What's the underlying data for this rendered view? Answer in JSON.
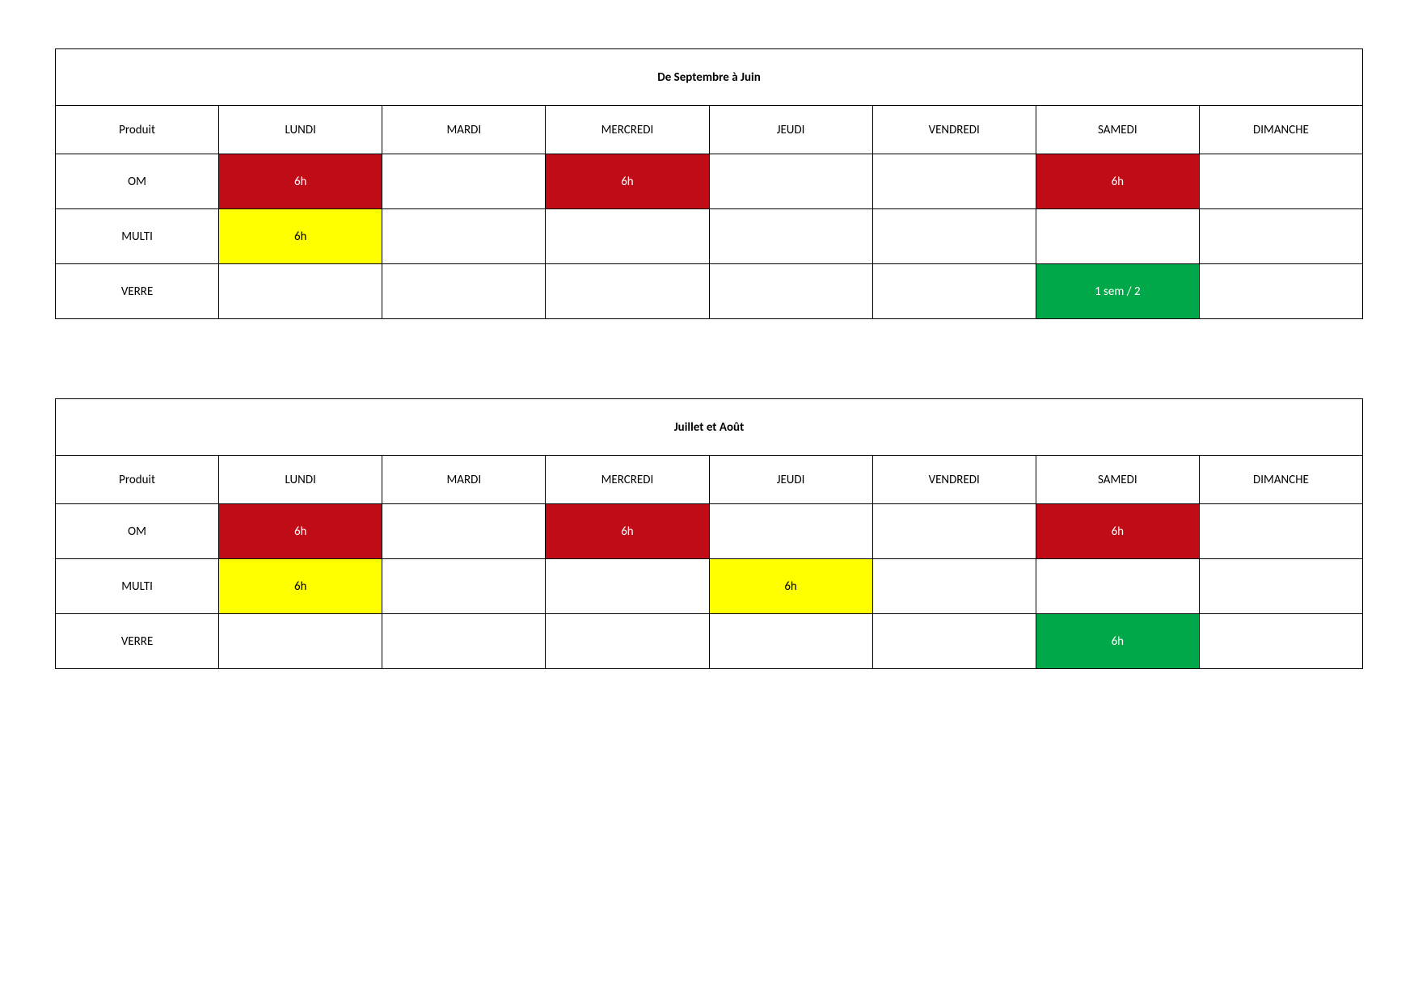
{
  "colors": {
    "red": "#c00c17",
    "yellow": "#ffff00",
    "green": "#00a84a",
    "white_text": "#ffffff",
    "black_text": "#000000"
  },
  "columns": [
    "Produit",
    "LUNDI",
    "MARDI",
    "MERCREDI",
    "JEUDI",
    "VENDREDI",
    "SAMEDI",
    "DIMANCHE"
  ],
  "tables": [
    {
      "title": "De Septembre à Juin",
      "rows": [
        {
          "label": "OM",
          "cells": [
            {
              "text": "6h",
              "bg": "red",
              "fg": "white_text"
            },
            {
              "text": "",
              "bg": "",
              "fg": ""
            },
            {
              "text": "6h",
              "bg": "red",
              "fg": "white_text"
            },
            {
              "text": "",
              "bg": "",
              "fg": ""
            },
            {
              "text": "",
              "bg": "",
              "fg": ""
            },
            {
              "text": "6h",
              "bg": "red",
              "fg": "white_text"
            },
            {
              "text": "",
              "bg": "",
              "fg": ""
            }
          ]
        },
        {
          "label": "MULTI",
          "cells": [
            {
              "text": "6h",
              "bg": "yellow",
              "fg": "black_text"
            },
            {
              "text": "",
              "bg": "",
              "fg": ""
            },
            {
              "text": "",
              "bg": "",
              "fg": ""
            },
            {
              "text": "",
              "bg": "",
              "fg": ""
            },
            {
              "text": "",
              "bg": "",
              "fg": ""
            },
            {
              "text": "",
              "bg": "",
              "fg": ""
            },
            {
              "text": "",
              "bg": "",
              "fg": ""
            }
          ]
        },
        {
          "label": "VERRE",
          "cells": [
            {
              "text": "",
              "bg": "",
              "fg": ""
            },
            {
              "text": "",
              "bg": "",
              "fg": ""
            },
            {
              "text": "",
              "bg": "",
              "fg": ""
            },
            {
              "text": "",
              "bg": "",
              "fg": ""
            },
            {
              "text": "",
              "bg": "",
              "fg": ""
            },
            {
              "text": "1 sem / 2",
              "bg": "green",
              "fg": "white_text"
            },
            {
              "text": "",
              "bg": "",
              "fg": ""
            }
          ]
        }
      ]
    },
    {
      "title": "Juillet et Août",
      "rows": [
        {
          "label": "OM",
          "cells": [
            {
              "text": "6h",
              "bg": "red",
              "fg": "white_text"
            },
            {
              "text": "",
              "bg": "",
              "fg": ""
            },
            {
              "text": "6h",
              "bg": "red",
              "fg": "white_text"
            },
            {
              "text": "",
              "bg": "",
              "fg": ""
            },
            {
              "text": "",
              "bg": "",
              "fg": ""
            },
            {
              "text": "6h",
              "bg": "red",
              "fg": "white_text"
            },
            {
              "text": "",
              "bg": "",
              "fg": ""
            }
          ]
        },
        {
          "label": "MULTI",
          "cells": [
            {
              "text": "6h",
              "bg": "yellow",
              "fg": "black_text"
            },
            {
              "text": "",
              "bg": "",
              "fg": ""
            },
            {
              "text": "",
              "bg": "",
              "fg": ""
            },
            {
              "text": "6h",
              "bg": "yellow",
              "fg": "black_text"
            },
            {
              "text": "",
              "bg": "",
              "fg": ""
            },
            {
              "text": "",
              "bg": "",
              "fg": ""
            },
            {
              "text": "",
              "bg": "",
              "fg": ""
            }
          ]
        },
        {
          "label": "VERRE",
          "cells": [
            {
              "text": "",
              "bg": "",
              "fg": ""
            },
            {
              "text": "",
              "bg": "",
              "fg": ""
            },
            {
              "text": "",
              "bg": "",
              "fg": ""
            },
            {
              "text": "",
              "bg": "",
              "fg": ""
            },
            {
              "text": "",
              "bg": "",
              "fg": ""
            },
            {
              "text": "6h",
              "bg": "green",
              "fg": "white_text"
            },
            {
              "text": "",
              "bg": "",
              "fg": ""
            }
          ]
        }
      ]
    }
  ]
}
